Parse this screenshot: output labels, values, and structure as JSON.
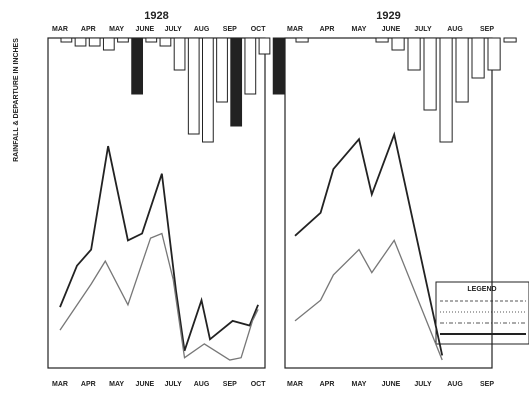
{
  "chart_data": [
    {
      "type": "bar-line",
      "title": "1928",
      "y_label": "RAINFALL & DEPARTURE IN INCHES",
      "categories": [
        "MAR",
        "APR",
        "MAY",
        "JUNE",
        "JULY",
        "AUG",
        "SEP",
        "OCT"
      ],
      "ylim": [
        -14,
        0
      ],
      "y2lim": [
        0,
        100
      ],
      "bars": {
        "values": [
          -0.5,
          -1,
          -1,
          -1.5,
          -0.5,
          -7,
          -0.5,
          -1,
          -4,
          -12,
          -13,
          -8,
          -11,
          -7,
          -2,
          -7
        ],
        "colors": [
          "#fff",
          "#fff",
          "#fff",
          "#fff",
          "#fff",
          "#222",
          "#fff",
          "#fff",
          "#fff",
          "#fff",
          "#fff",
          "#fff",
          "#222",
          "#fff",
          "#fff",
          "#222"
        ]
      },
      "series": [
        {
          "color": "#222",
          "x": [
            0,
            0.6,
            1.1,
            1.7,
            2.4,
            2.9,
            3.6,
            4.1,
            4.4,
            5.0,
            5.3,
            6.1,
            6.7,
            7.0
          ],
          "values": [
            23,
            41,
            48,
            93,
            52,
            55,
            81,
            30,
            4,
            26,
            9,
            17,
            15,
            24
          ]
        },
        {
          "color": "#777",
          "x": [
            0,
            1.1,
            1.6,
            2.4,
            3.2,
            3.6,
            4.0,
            4.4,
            5.1,
            6.0,
            6.4,
            6.8,
            7.0
          ],
          "values": [
            13,
            33,
            43,
            24,
            53,
            55,
            35,
            1,
            7,
            0,
            1,
            17,
            22
          ]
        }
      ]
    },
    {
      "type": "bar-line",
      "title": "1929",
      "categories": [
        "MAR",
        "APR",
        "MAY",
        "JUNE",
        "JULY",
        "AUG",
        "SEP"
      ],
      "ylim": [
        -14,
        0
      ],
      "y2lim": [
        0,
        100
      ],
      "bars": {
        "values": [
          -0.5,
          0,
          0,
          0,
          0,
          -0.5,
          -1.5,
          -4,
          -9,
          -13,
          -8,
          -5,
          -4,
          -0.5
        ],
        "colors": [
          "#fff",
          "#fff",
          "#fff",
          "#fff",
          "#fff",
          "#fff",
          "#fff",
          "#fff",
          "#fff",
          "#fff",
          "#fff",
          "#fff",
          "#fff",
          "#fff"
        ]
      },
      "series": [
        {
          "color": "#222",
          "x": [
            0,
            0.8,
            1.2,
            2.0,
            2.4,
            3.1,
            4.6
          ],
          "values": [
            54,
            64,
            83,
            96,
            72,
            98,
            2
          ]
        },
        {
          "color": "#777",
          "x": [
            0,
            0.8,
            1.2,
            2.0,
            2.4,
            3.1,
            4.6
          ],
          "values": [
            17,
            26,
            37,
            48,
            38,
            52,
            0
          ]
        }
      ]
    }
  ],
  "legend_title": "LEGEND"
}
